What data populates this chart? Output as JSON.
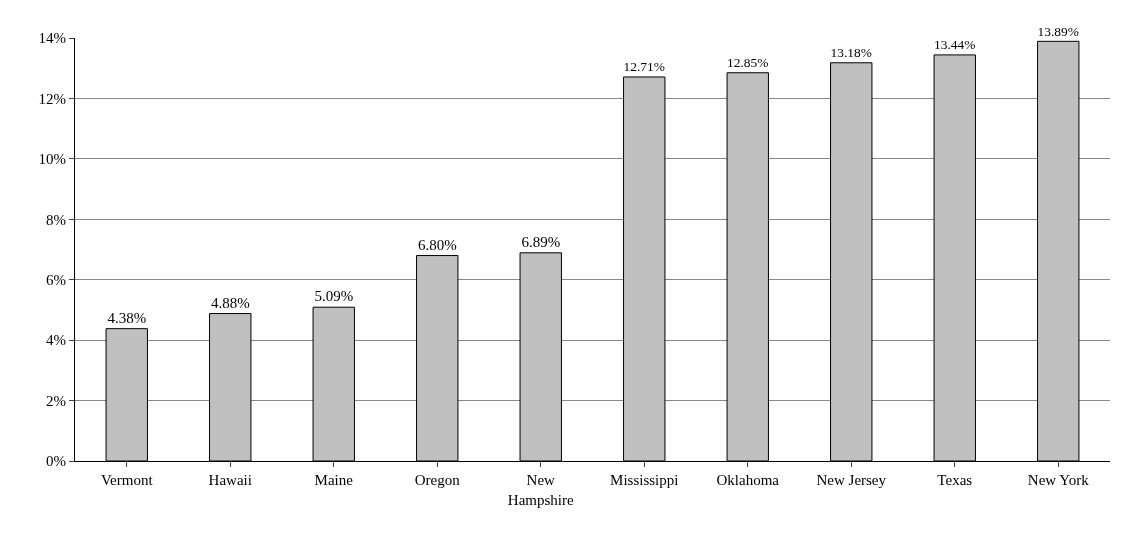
{
  "chart_data": {
    "type": "bar",
    "categories": [
      "Vermont",
      "Hawaii",
      "Maine",
      "Oregon",
      "New Hampshire",
      "Mississippi",
      "Oklahoma",
      "New Jersey",
      "Texas",
      "New York"
    ],
    "values": [
      4.38,
      4.88,
      5.09,
      6.8,
      6.89,
      12.71,
      12.85,
      13.18,
      13.44,
      13.89
    ],
    "value_labels": [
      "4.38%",
      "4.88%",
      "5.09%",
      "6.80%",
      "6.89%",
      "12.71%",
      "12.85%",
      "13.18%",
      "13.44%",
      "13.89%"
    ],
    "color": "#c0c0c0",
    "ylim": [
      0,
      14
    ],
    "yticks": [
      {
        "value": 0,
        "label": "0%"
      },
      {
        "value": 2,
        "label": "2%"
      },
      {
        "value": 4,
        "label": "4%"
      },
      {
        "value": 6,
        "label": "6%"
      },
      {
        "value": 8,
        "label": "8%"
      },
      {
        "value": 10,
        "label": "10%"
      },
      {
        "value": 12,
        "label": "12%"
      },
      {
        "value": 14,
        "label": "14%"
      }
    ],
    "grid": "y",
    "legend": false
  }
}
